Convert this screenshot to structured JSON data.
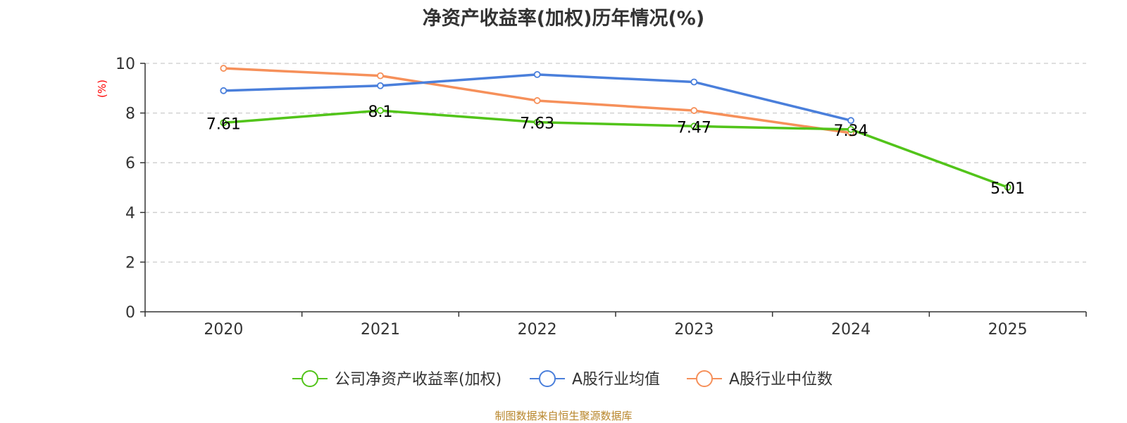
{
  "chart_data": {
    "type": "line",
    "title": "净资产收益率(加权)历年情况(%)",
    "ylabel": "(%)",
    "xlabel": "",
    "categories": [
      "2020",
      "2021",
      "2022",
      "2023",
      "2024",
      "2025"
    ],
    "ylim": [
      0,
      10
    ],
    "yticks": [
      0,
      2,
      4,
      6,
      8,
      10
    ],
    "grid": true,
    "legend_position": "bottom",
    "series": [
      {
        "name": "公司净资产收益率(加权)",
        "color": "#52c41a",
        "values": [
          7.61,
          8.1,
          7.63,
          7.47,
          7.34,
          5.01
        ],
        "show_labels": true
      },
      {
        "name": "A股行业均值",
        "color": "#4a7fdb",
        "values": [
          8.9,
          9.1,
          9.55,
          9.25,
          7.7,
          null
        ],
        "show_labels": false
      },
      {
        "name": "A股行业中位数",
        "color": "#f6905a",
        "values": [
          9.8,
          9.5,
          8.5,
          8.1,
          7.2,
          null
        ],
        "show_labels": false
      }
    ],
    "data_labels": [
      "7.61",
      "8.1",
      "7.63",
      "7.47",
      "7.34",
      "5.01"
    ]
  },
  "source_note": "制图数据来自恒生聚源数据库"
}
